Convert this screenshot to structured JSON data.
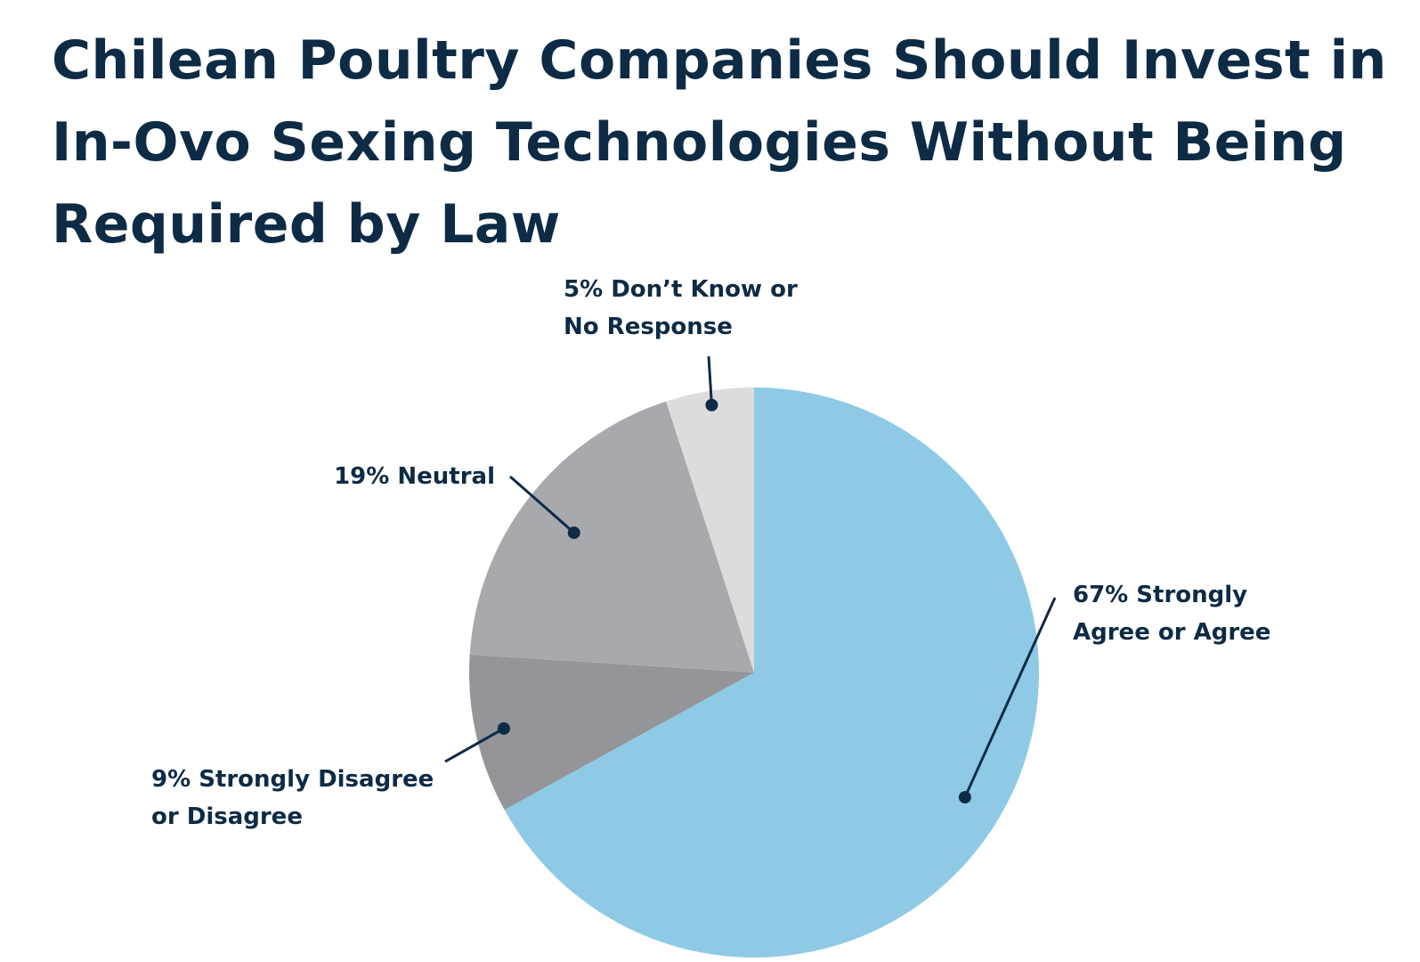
{
  "chart_data": {
    "type": "pie",
    "title": "Chilean Poultry Companies Should Invest in In-Ovo Sexing Technologies Without Being Required by Law",
    "slices": [
      {
        "label_lines": [
          "67% Strongly",
          "Agree or Agree"
        ],
        "value": 67,
        "color": "#8ecae6"
      },
      {
        "label_lines": [
          "9% Strongly Disagree",
          "or Disagree"
        ],
        "value": 9,
        "color": "#939598"
      },
      {
        "label_lines": [
          "19% Neutral"
        ],
        "value": 19,
        "color": "#a7a9ac"
      },
      {
        "label_lines": [
          "5% Don’t Know or",
          "No Response"
        ],
        "value": 5,
        "color": "#dcdcdd"
      }
    ]
  }
}
